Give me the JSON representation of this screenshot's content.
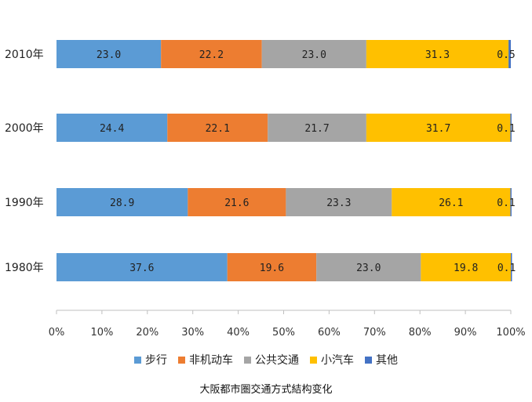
{
  "chart_data": {
    "type": "bar",
    "orientation": "horizontal",
    "stacked": "percent",
    "title": "",
    "caption": "大阪都市圏交通方式結构变化",
    "categories": [
      "2010年",
      "2000年",
      "1990年",
      "1980年"
    ],
    "series": [
      {
        "name": "步行",
        "color": "#5b9bd5",
        "values": [
          23.0,
          24.4,
          28.9,
          37.6
        ]
      },
      {
        "name": "非机动车",
        "color": "#ed7d31",
        "values": [
          22.2,
          22.1,
          21.6,
          19.6
        ]
      },
      {
        "name": "公共交通",
        "color": "#a5a5a5",
        "values": [
          23.0,
          21.7,
          23.3,
          23.0
        ]
      },
      {
        "name": "小汽车",
        "color": "#ffc000",
        "values": [
          31.3,
          31.7,
          26.1,
          19.8
        ]
      },
      {
        "name": "其他",
        "color": "#4472c4",
        "values": [
          0.5,
          0.1,
          0.1,
          0.1
        ]
      }
    ],
    "x_ticks": [
      "0%",
      "10%",
      "20%",
      "30%",
      "40%",
      "50%",
      "60%",
      "70%",
      "80%",
      "90%",
      "100%"
    ],
    "xlim": [
      0,
      100
    ],
    "grid": false,
    "legend_position": "bottom"
  }
}
